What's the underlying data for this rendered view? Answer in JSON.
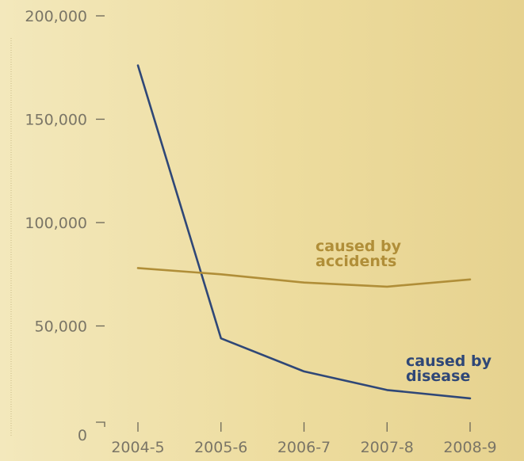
{
  "chart_data": {
    "type": "line",
    "categories": [
      "2004-5",
      "2005-6",
      "2006-7",
      "2007-8",
      "2008-9"
    ],
    "yticks": [
      {
        "value": 0,
        "label": "0"
      },
      {
        "value": 50000,
        "label": "50,000"
      },
      {
        "value": 100000,
        "label": "100,000"
      },
      {
        "value": 150000,
        "label": "150,000"
      },
      {
        "value": 200000,
        "label": "200,000"
      }
    ],
    "ylim": [
      0,
      200000
    ],
    "series": [
      {
        "name_lines": [
          "caused by",
          "disease"
        ],
        "values": [
          176000,
          44000,
          28000,
          19000,
          15000
        ],
        "color": "#2f4777"
      },
      {
        "name_lines": [
          "caused by",
          "accidents"
        ],
        "values": [
          78000,
          75000,
          71000,
          69000,
          72500
        ],
        "color": "#b08e38"
      }
    ],
    "axis_color": "#6b6758",
    "text_color": "#7a7566",
    "grid": false
  }
}
